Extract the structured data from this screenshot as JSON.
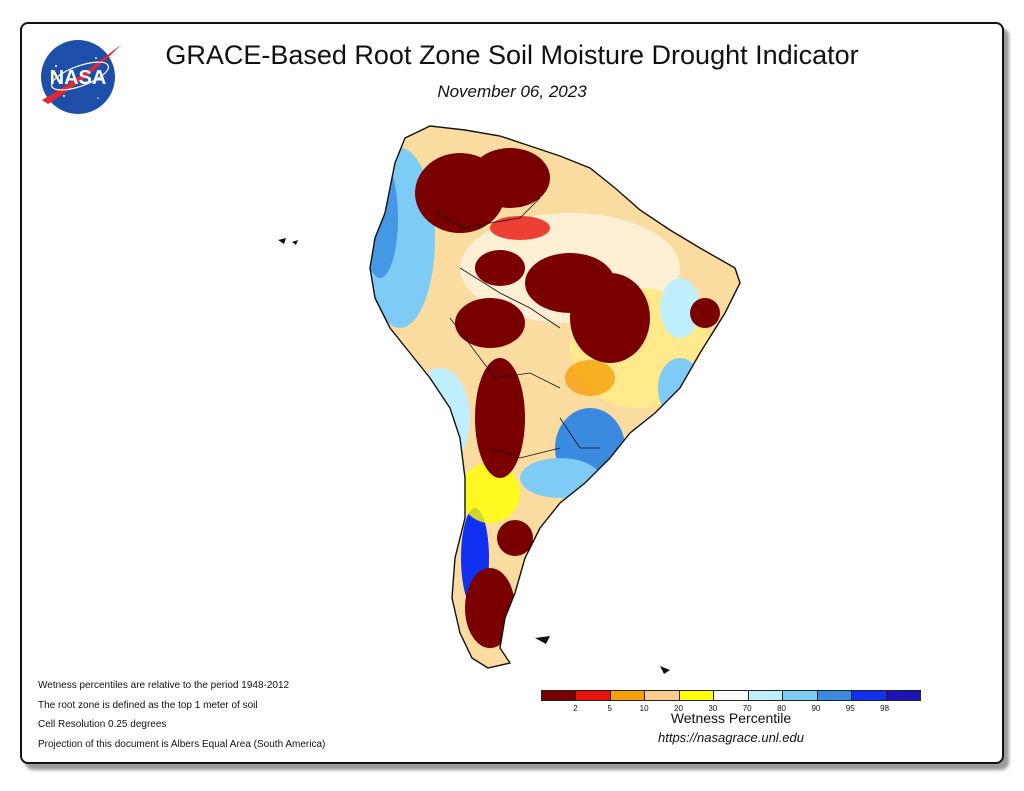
{
  "header": {
    "title": "GRACE-Based Root Zone Soil Moisture Drought Indicator",
    "date": "November 06, 2023",
    "logo_text": "NASA"
  },
  "notes": [
    "Wetness percentiles are relative to the period 1948-2012",
    "The root zone is defined as the top 1 meter of soil",
    "Cell Resolution 0.25 degrees",
    "Projection of this document is Albers Equal Area (South America)"
  ],
  "legend": {
    "title": "Wetness Percentile",
    "url": "https://nasagrace.unl.edu",
    "colors": [
      "#7a0000",
      "#e8140c",
      "#f5a00a",
      "#f8cc8c",
      "#ffff00",
      "#ffffff",
      "#bfefff",
      "#7ecbf5",
      "#3a8be0",
      "#1230f0",
      "#1c12b8"
    ],
    "ticks": [
      "2",
      "5",
      "10",
      "20",
      "30",
      "70",
      "80",
      "90",
      "95",
      "98"
    ]
  }
}
